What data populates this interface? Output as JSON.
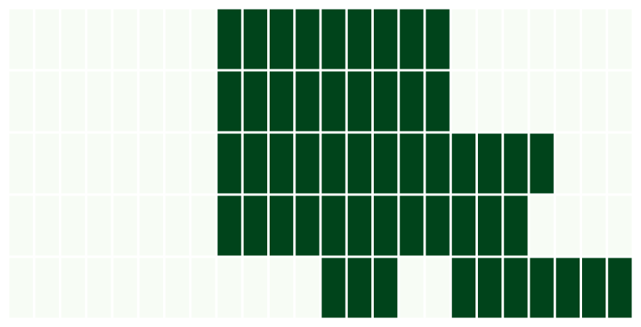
{
  "chart_data": {
    "type": "heatmap",
    "title": "",
    "xlabel": "",
    "ylabel": "",
    "rows": 5,
    "cols": 24,
    "value_range": [
      0,
      1
    ],
    "grid": true,
    "legend": "none",
    "colors": {
      "low": "#f7fcf5",
      "high": "#00441b",
      "gap": "#ffffff"
    },
    "values": [
      [
        0,
        0,
        0,
        0,
        0,
        0,
        0,
        0,
        1,
        1,
        1,
        1,
        1,
        1,
        1,
        1,
        1,
        0,
        0,
        0,
        0,
        0,
        0,
        0
      ],
      [
        0,
        0,
        0,
        0,
        0,
        0,
        0,
        0,
        1,
        1,
        1,
        1,
        1,
        1,
        1,
        1,
        1,
        0,
        0,
        0,
        0,
        0,
        0,
        0
      ],
      [
        0,
        0,
        0,
        0,
        0,
        0,
        0,
        0,
        1,
        1,
        1,
        1,
        1,
        1,
        1,
        1,
        1,
        1,
        1,
        1,
        1,
        0,
        0,
        0
      ],
      [
        0,
        0,
        0,
        0,
        0,
        0,
        0,
        0,
        1,
        1,
        1,
        1,
        1,
        1,
        1,
        1,
        1,
        1,
        1,
        1,
        0,
        0,
        0,
        0
      ],
      [
        0,
        0,
        0,
        0,
        0,
        0,
        0,
        0,
        0,
        0,
        0,
        0,
        1,
        1,
        1,
        0,
        0,
        1,
        1,
        1,
        1,
        1,
        1,
        1
      ]
    ]
  }
}
